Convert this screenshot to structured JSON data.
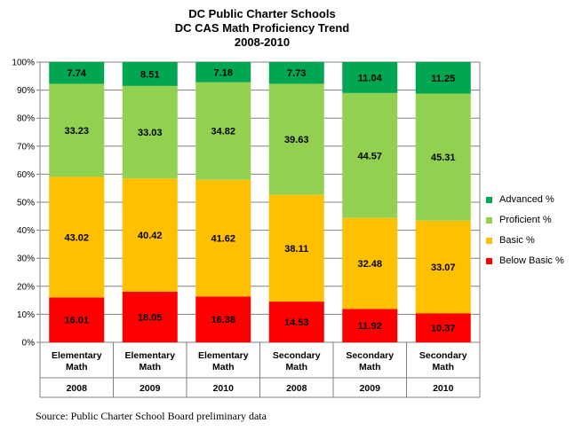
{
  "title_lines": [
    "DC Public Charter Schools",
    "DC CAS Math Proficiency  Trend",
    "2008-2010"
  ],
  "source": "Source: Public Charter School Board preliminary data",
  "chart_data": {
    "type": "bar",
    "stacked": true,
    "percent_stacked": true,
    "title": "DC Public Charter Schools DC CAS Math Proficiency Trend 2008-2010",
    "categories": [
      {
        "group": "Elementary Math",
        "year": "2008"
      },
      {
        "group": "Elementary Math",
        "year": "2009"
      },
      {
        "group": "Elementary Math",
        "year": "2010"
      },
      {
        "group": "Secondary Math",
        "year": "2008"
      },
      {
        "group": "Secondary Math",
        "year": "2009"
      },
      {
        "group": "Secondary Math",
        "year": "2010"
      }
    ],
    "series": [
      {
        "name": "Below Basic %",
        "color": "#ff0000",
        "values": [
          16.01,
          18.05,
          16.38,
          14.53,
          11.92,
          10.37
        ]
      },
      {
        "name": "Basic %",
        "color": "#ffc000",
        "values": [
          43.02,
          40.42,
          41.62,
          38.11,
          32.48,
          33.07
        ]
      },
      {
        "name": "Proficient %",
        "color": "#92d050",
        "values": [
          33.23,
          33.03,
          34.82,
          39.63,
          44.57,
          45.31
        ]
      },
      {
        "name": "Advanced %",
        "color": "#00a651",
        "values": [
          7.74,
          8.51,
          7.18,
          7.73,
          11.04,
          11.25
        ]
      }
    ],
    "y_ticks": [
      "0%",
      "10%",
      "20%",
      "30%",
      "40%",
      "50%",
      "60%",
      "70%",
      "80%",
      "90%",
      "100%"
    ],
    "ylim": [
      0,
      100
    ],
    "grid": true,
    "legend_position": "right",
    "legend_order": [
      "Advanced %",
      "Proficient %",
      "Basic %",
      "Below Basic %"
    ]
  }
}
